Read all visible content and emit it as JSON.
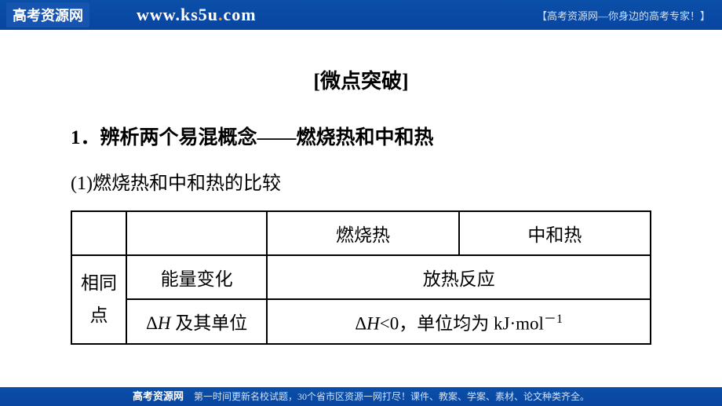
{
  "header": {
    "logo": "高考资源网",
    "url_www": "www.",
    "url_k": "k",
    "url_s5u": "s5u",
    "url_dot": ".",
    "url_com": "com",
    "tagline": "【高考资源网—你身边的高考专家！】"
  },
  "content": {
    "title": "[微点突破]",
    "heading": "1．辨析两个易混概念——燃烧热和中和热",
    "subheading": "(1)燃烧热和中和热的比较"
  },
  "table": {
    "header_row": {
      "col1": "",
      "col2": "",
      "col3": "燃烧热",
      "col4": "中和热"
    },
    "row1_label": "相同点",
    "row1": {
      "col2": "能量变化",
      "col3_4": "放热反应"
    },
    "row2": {
      "col2_prefix": "Δ",
      "col2_h": "H",
      "col2_suffix": " 及其单位",
      "col3_4_prefix": "Δ",
      "col3_4_h": "H",
      "col3_4_mid": "<0，单位均为 kJ·mol",
      "col3_4_sup": "－1"
    }
  },
  "footer": {
    "logo": "高考资源网",
    "text": "第一时间更新名校试题，30个省市区资源一网打尽！课件、教案、学案、素材、论文种类齐全。"
  },
  "colors": {
    "header_bg": "#0a4fa8",
    "text": "#000000",
    "border": "#000000",
    "white": "#ffffff",
    "orange": "#ff9933"
  }
}
